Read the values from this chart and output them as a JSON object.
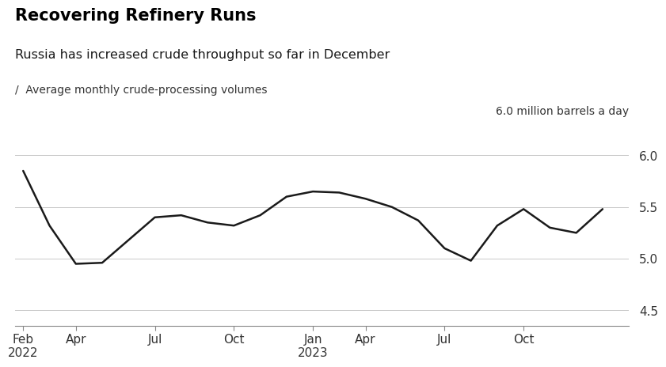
{
  "title": "Recovering Refinery Runs",
  "subtitle": "Russia has increased crude throughput so far in December",
  "legend_label": "Average monthly crude-processing volumes",
  "unit_label": "6.0 million barrels a day",
  "background_color": "#ffffff",
  "line_color": "#1a1a1a",
  "grid_color": "#c8c8c8",
  "x_data": [
    0,
    1,
    2,
    3,
    4,
    5,
    6,
    7,
    8,
    9,
    10,
    11,
    12,
    13,
    14,
    15,
    16,
    17,
    18,
    19,
    20,
    21,
    22
  ],
  "y_data": [
    5.85,
    5.32,
    4.95,
    4.96,
    5.18,
    5.4,
    5.42,
    5.35,
    5.32,
    5.42,
    5.6,
    5.65,
    5.64,
    5.58,
    5.5,
    5.37,
    5.1,
    4.98,
    5.32,
    5.48,
    5.3,
    5.25,
    5.48
  ],
  "x_tick_positions": [
    0,
    2,
    5,
    8,
    11,
    13,
    16,
    19
  ],
  "x_tick_labels": [
    "Feb\n2022",
    "Apr",
    "Jul",
    "Oct",
    "Jan\n2023",
    "Apr",
    "Jul",
    "Oct"
  ],
  "y_ticks": [
    4.5,
    5.0,
    5.5,
    6.0
  ],
  "ylim": [
    4.35,
    6.15
  ],
  "xlim": [
    -0.3,
    23.0
  ]
}
